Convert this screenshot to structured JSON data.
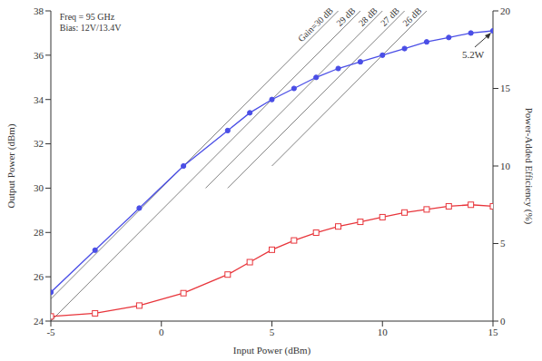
{
  "chart_data": {
    "type": "line",
    "x": [
      -5,
      -3,
      -1,
      1,
      3,
      4,
      5,
      6,
      7,
      8,
      9,
      10,
      11,
      12,
      13,
      14,
      15
    ],
    "xlabel": "Input Power (dBm)",
    "ylabel": "Output Power (dBm)",
    "y2label": "Power-Added Efficiency (%)",
    "xlim": [
      -5,
      15
    ],
    "xticks": [
      -5,
      0,
      5,
      10,
      15
    ],
    "ylim": [
      24,
      38
    ],
    "yticks": [
      24,
      26,
      28,
      30,
      32,
      34,
      36,
      38
    ],
    "y2lim": [
      0,
      20
    ],
    "y2ticks": [
      0,
      5,
      10,
      15,
      20
    ],
    "grid": false,
    "series": [
      {
        "name": "Output Power",
        "color": "#4a4ee6",
        "marker": "circle",
        "values": [
          25.3,
          27.2,
          29.1,
          31.0,
          32.6,
          33.4,
          34.0,
          34.5,
          35.0,
          35.4,
          35.7,
          36.0,
          36.3,
          36.6,
          36.8,
          37.0,
          37.1
        ]
      },
      {
        "name": "Power-Added Efficiency",
        "color": "#e8353b",
        "marker": "square",
        "axis": "y2",
        "values": [
          0.3,
          0.5,
          1.0,
          1.8,
          3.0,
          3.8,
          4.6,
          5.2,
          5.7,
          6.1,
          6.4,
          6.7,
          7.0,
          7.2,
          7.4,
          7.5,
          7.4
        ]
      }
    ],
    "gain_lines": [
      {
        "label": "Gain=30 dB",
        "x": [
          -5,
          8
        ],
        "y": [
          25,
          38
        ],
        "color": "#808080"
      },
      {
        "label": "29 dB",
        "x": [
          -5,
          9
        ],
        "y": [
          24,
          38
        ],
        "color": "#808080"
      },
      {
        "label": "28 dB",
        "x": [
          2,
          10
        ],
        "y": [
          30,
          38
        ],
        "color": "#808080"
      },
      {
        "label": "27 dB",
        "x": [
          3,
          11
        ],
        "y": [
          30,
          38
        ],
        "color": "#808080"
      },
      {
        "label": "26 dB",
        "x": [
          5,
          12
        ],
        "y": [
          31,
          38
        ],
        "color": "#808080"
      }
    ],
    "annotations": [
      {
        "text": "Freq = 95 GHz",
        "x": -4.6,
        "y": 37.6
      },
      {
        "text": "Bias: 12V/13.4V",
        "x": -4.6,
        "y": 37.1
      },
      {
        "text": "5.2W",
        "x": 15,
        "y": 37.1
      }
    ]
  }
}
